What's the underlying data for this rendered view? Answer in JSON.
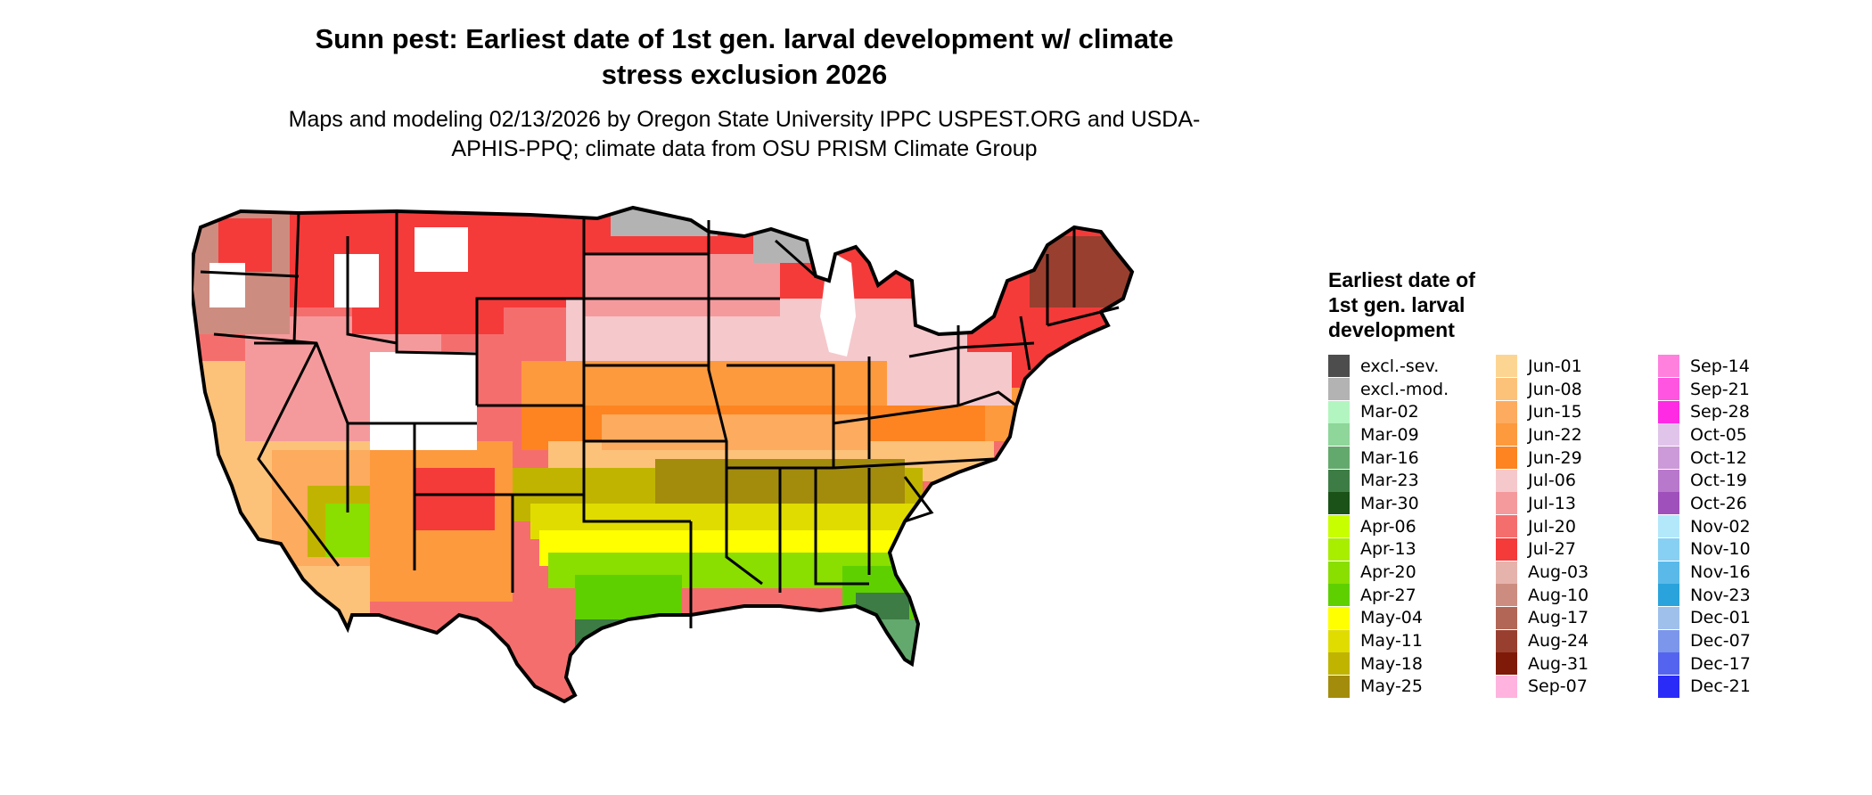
{
  "title": "Sunn pest: Earliest date of 1st gen. larval development w/ climate stress exclusion 2026",
  "subtitle": "Maps and modeling 02/13/2026 by Oregon State University IPPC USPEST.ORG and USDA-APHIS-PPQ; climate data from OSU PRISM Climate Group",
  "legend": {
    "title": "Earliest date of 1st gen. larval development",
    "columns": [
      [
        {
          "label": "excl.-sev.",
          "color": "#4d4d4d"
        },
        {
          "label": "excl.-mod.",
          "color": "#b3b3b3"
        },
        {
          "label": "Mar-02",
          "color": "#b3f5c0"
        },
        {
          "label": "Mar-09",
          "color": "#8ed69a"
        },
        {
          "label": "Mar-16",
          "color": "#63a96d"
        },
        {
          "label": "Mar-23",
          "color": "#3d7c45"
        },
        {
          "label": "Mar-30",
          "color": "#1a5218"
        },
        {
          "label": "Apr-06",
          "color": "#c8ff00"
        },
        {
          "label": "Apr-13",
          "color": "#a8ee00"
        },
        {
          "label": "Apr-20",
          "color": "#8ade00"
        },
        {
          "label": "Apr-27",
          "color": "#5ed000"
        },
        {
          "label": "May-04",
          "color": "#ffff00"
        },
        {
          "label": "May-11",
          "color": "#e0dc00"
        },
        {
          "label": "May-18",
          "color": "#c0b400"
        },
        {
          "label": "May-25",
          "color": "#a38c0c"
        }
      ],
      [
        {
          "label": "Jun-01",
          "color": "#fdd592"
        },
        {
          "label": "Jun-08",
          "color": "#fdc27a"
        },
        {
          "label": "Jun-15",
          "color": "#fdab5e"
        },
        {
          "label": "Jun-22",
          "color": "#fd9a3e"
        },
        {
          "label": "Jun-29",
          "color": "#fd8420"
        },
        {
          "label": "Jul-06",
          "color": "#f5c8cc"
        },
        {
          "label": "Jul-13",
          "color": "#f59a9c"
        },
        {
          "label": "Jul-20",
          "color": "#f56e6e"
        },
        {
          "label": "Jul-27",
          "color": "#f53a3a"
        },
        {
          "label": "Aug-03",
          "color": "#e5b3ac"
        },
        {
          "label": "Aug-10",
          "color": "#cc8d80"
        },
        {
          "label": "Aug-17",
          "color": "#b26655"
        },
        {
          "label": "Aug-24",
          "color": "#993f2f"
        },
        {
          "label": "Aug-31",
          "color": "#7f1a08"
        },
        {
          "label": "Sep-07",
          "color": "#ffb3de"
        }
      ],
      [
        {
          "label": "Sep-14",
          "color": "#ff80dd"
        },
        {
          "label": "Sep-21",
          "color": "#ff55e0"
        },
        {
          "label": "Sep-28",
          "color": "#ff2ae3"
        },
        {
          "label": "Oct-05",
          "color": "#e0c4ea"
        },
        {
          "label": "Oct-12",
          "color": "#cc9ad8"
        },
        {
          "label": "Oct-19",
          "color": "#b878cb"
        },
        {
          "label": "Oct-26",
          "color": "#a050bb"
        },
        {
          "label": "Nov-02",
          "color": "#b3e8fb"
        },
        {
          "label": "Nov-10",
          "color": "#88d0f3"
        },
        {
          "label": "Nov-16",
          "color": "#5ab9e9"
        },
        {
          "label": "Nov-23",
          "color": "#2aa3dc"
        },
        {
          "label": "Dec-01",
          "color": "#a0c0ec"
        },
        {
          "label": "Dec-07",
          "color": "#7b96eb"
        },
        {
          "label": "Dec-17",
          "color": "#5564ef"
        },
        {
          "label": "Dec-21",
          "color": "#2b2bf7"
        }
      ]
    ]
  }
}
